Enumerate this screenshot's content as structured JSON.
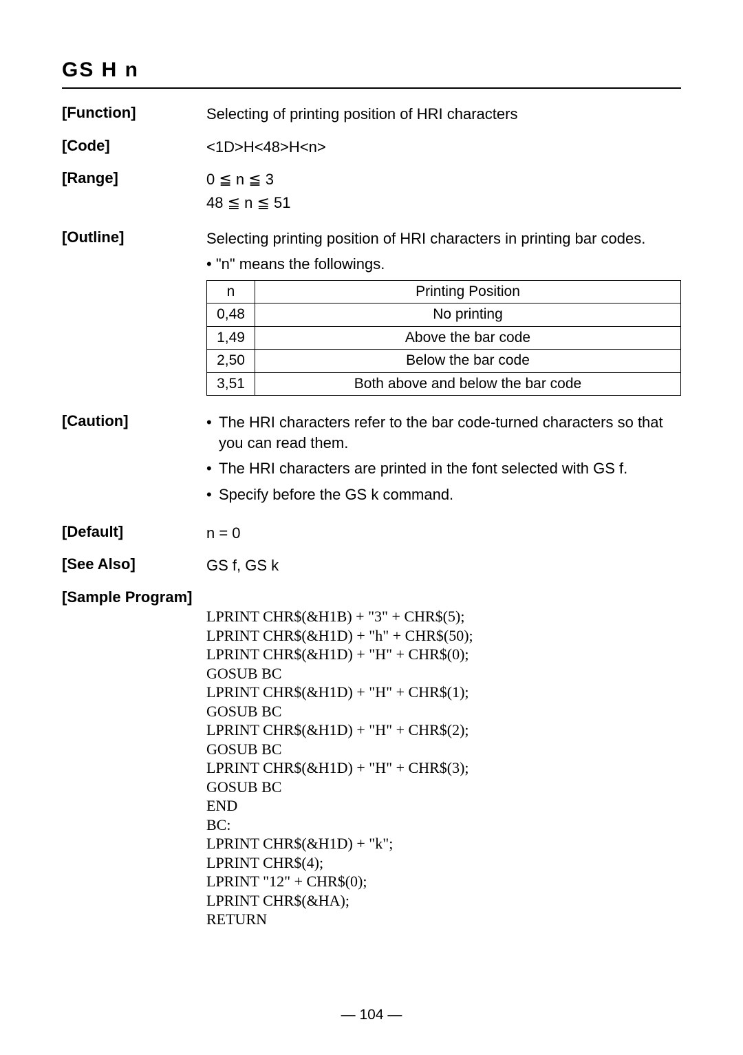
{
  "title": "GS  H  n",
  "function": {
    "label": "[Function]",
    "text": "Selecting of printing position of HRI characters"
  },
  "code": {
    "label": "[Code]",
    "text": "<1D>H<48>H<n>"
  },
  "range": {
    "label": "[Range]",
    "line1": "0 ≦ n ≦ 3",
    "line2": "48 ≦ n ≦ 51"
  },
  "outline": {
    "label": "[Outline]",
    "text": "Selecting printing position of HRI characters in printing bar codes.",
    "bullet": "• \"n\" means the followings.",
    "table": {
      "header_n": "n",
      "header_pos": "Printing Position",
      "rows": [
        {
          "n": "0,48",
          "pos": "No printing"
        },
        {
          "n": "1,49",
          "pos": "Above the bar code"
        },
        {
          "n": "2,50",
          "pos": "Below the bar code"
        },
        {
          "n": "3,51",
          "pos": "Both above and below the bar code"
        }
      ]
    }
  },
  "caution": {
    "label": "[Caution]",
    "items": [
      "The HRI characters refer to the bar code-turned characters so that you can read them.",
      "The HRI characters are printed in the font selected with GS f.",
      "Specify before the GS k command."
    ]
  },
  "default": {
    "label": "[Default]",
    "text": "n = 0"
  },
  "seealso": {
    "label": "[See Also]",
    "text": "GS f, GS k"
  },
  "sample": {
    "label": "[Sample Program]",
    "lines": [
      "LPRINT CHR$(&H1B) + \"3\" + CHR$(5);",
      "LPRINT CHR$(&H1D) + \"h\" + CHR$(50);",
      "LPRINT CHR$(&H1D) + \"H\" + CHR$(0);",
      "GOSUB BC",
      "LPRINT CHR$(&H1D) + \"H\" + CHR$(1);",
      "GOSUB BC",
      "LPRINT CHR$(&H1D) + \"H\" + CHR$(2);",
      "GOSUB BC",
      "LPRINT CHR$(&H1D) + \"H\" + CHR$(3);",
      "GOSUB BC",
      "END",
      "BC:",
      "LPRINT CHR$(&H1D) + \"k\";",
      "LPRINT CHR$(4);",
      "LPRINT \"12\" + CHR$(0);",
      "LPRINT CHR$(&HA);",
      "RETURN"
    ]
  },
  "page_number": "— 104 —",
  "bullet_char": "•"
}
